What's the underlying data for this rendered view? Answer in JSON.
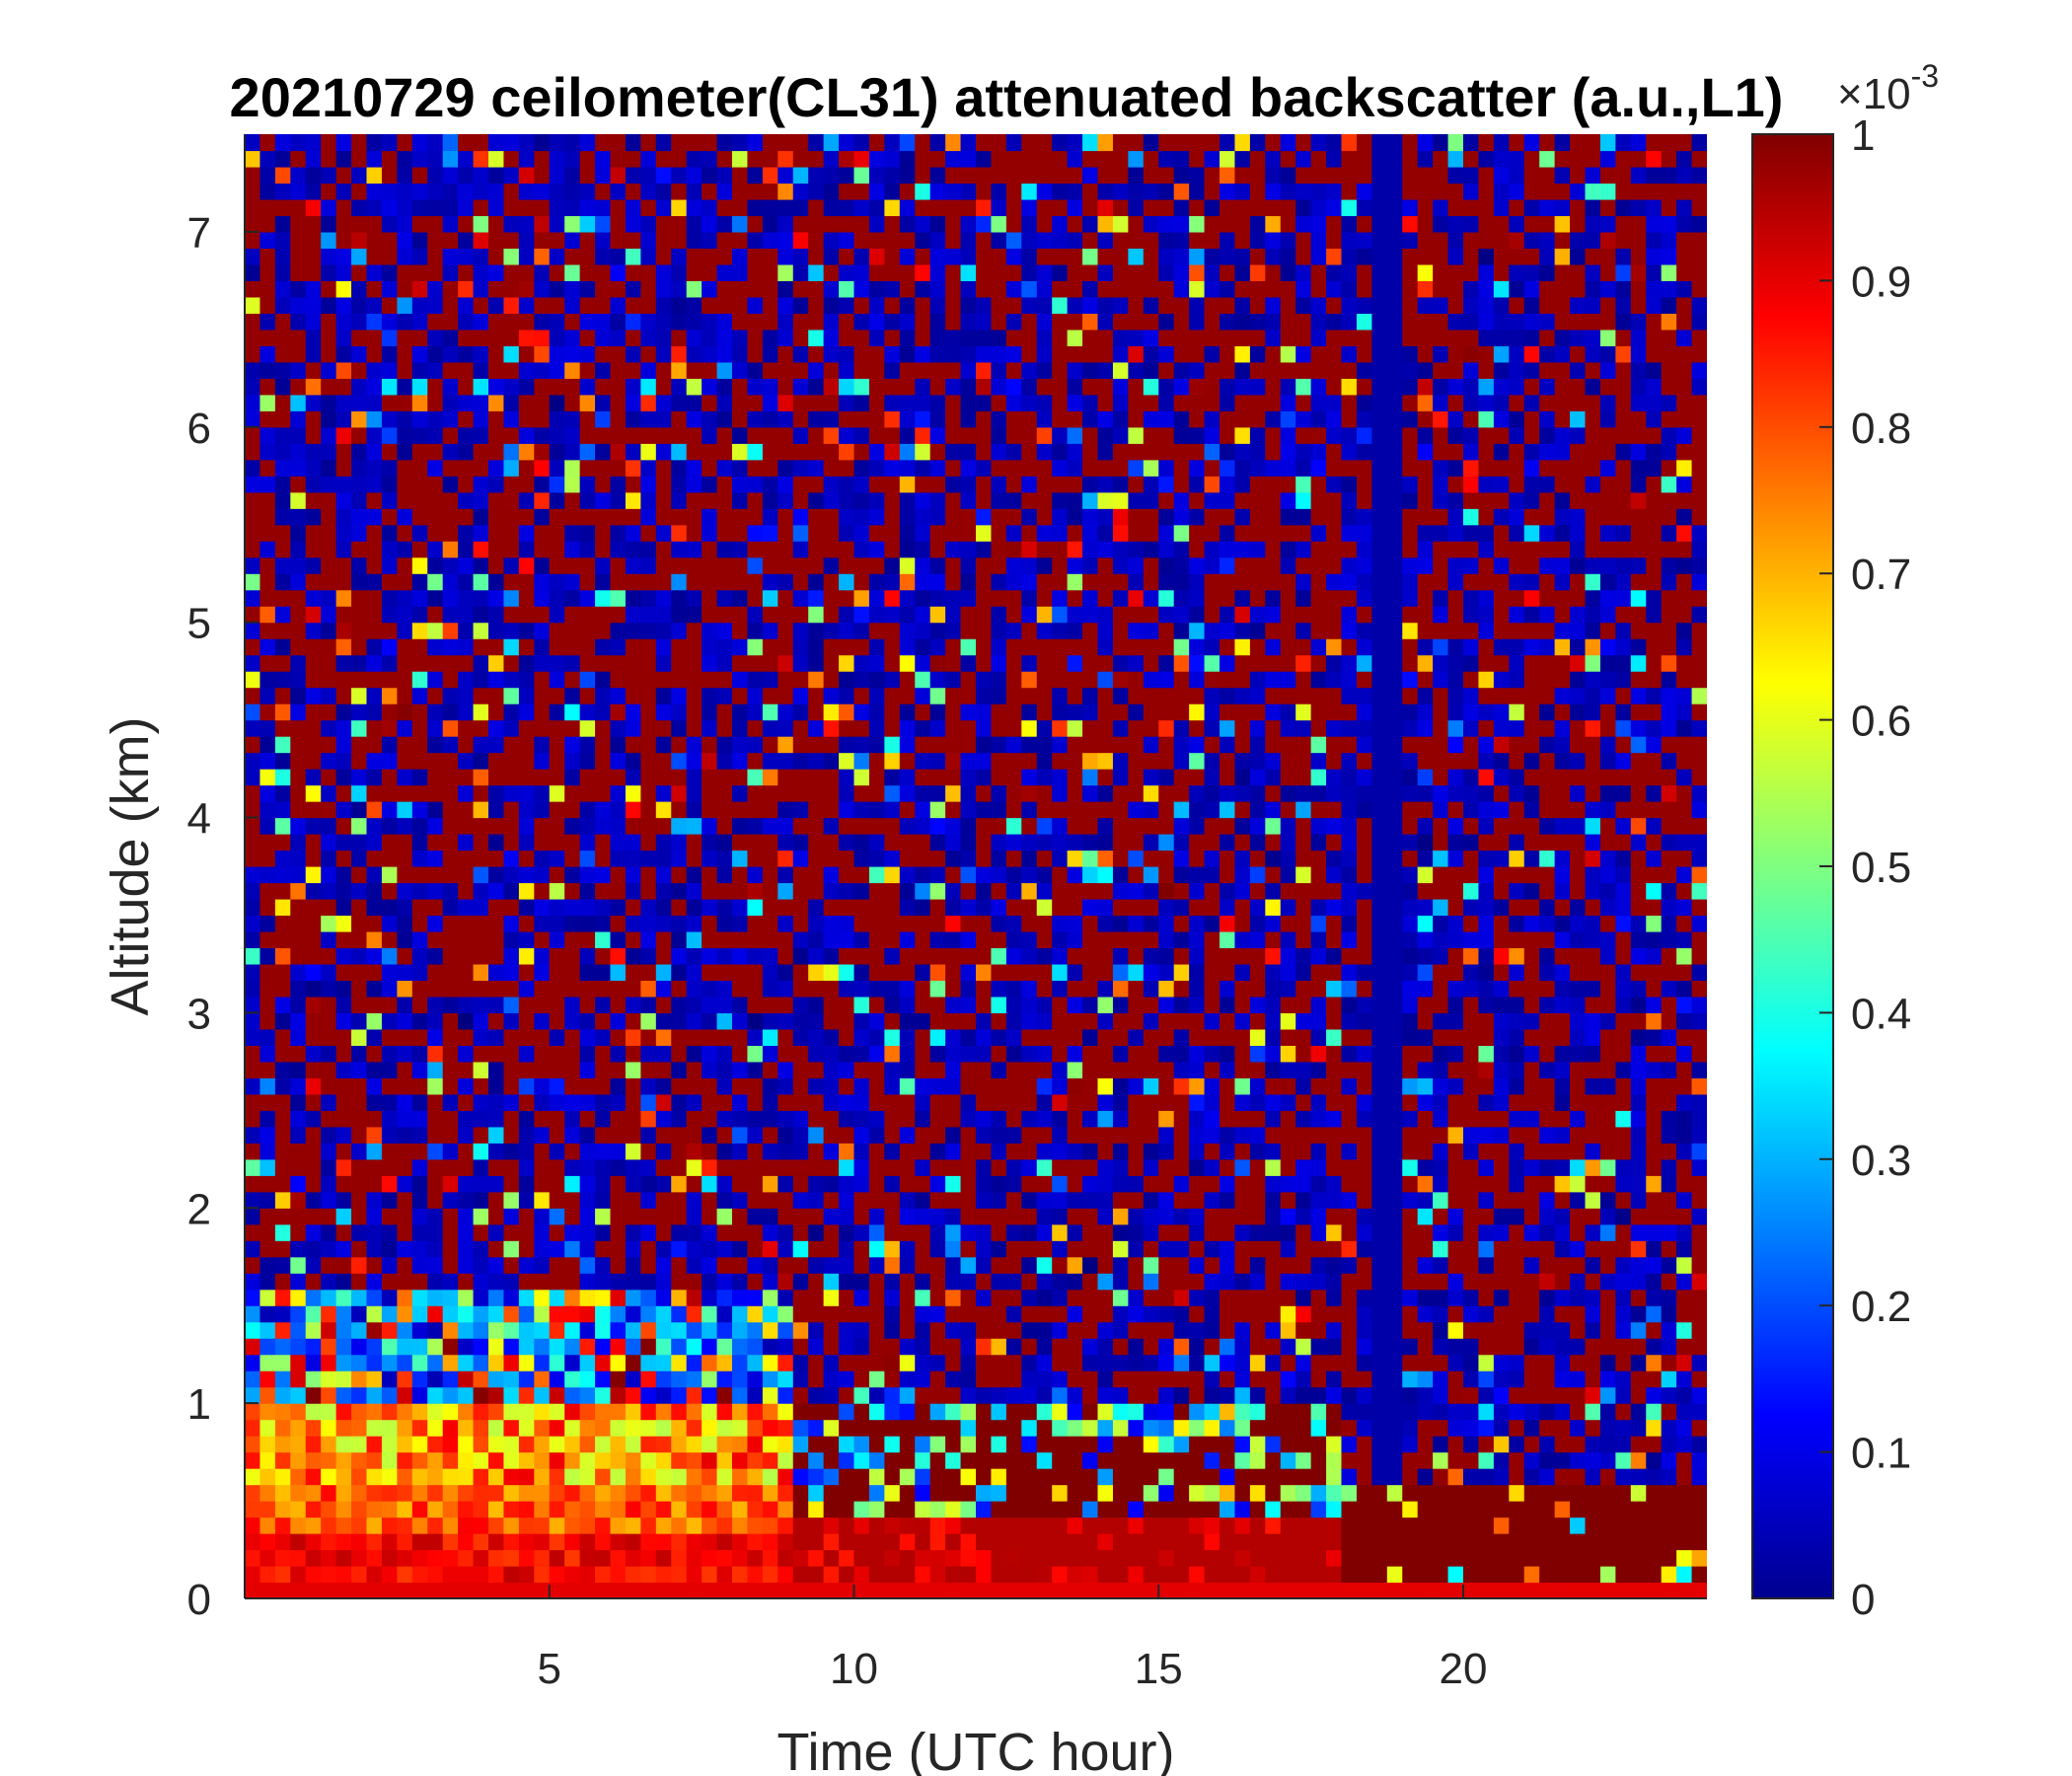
{
  "chart_data": {
    "type": "heatmap",
    "title": "20210729 ceilometer(CL31) attenuated backscatter (a.u.,L1)",
    "xlabel": "Time (UTC hour)",
    "ylabel": "Altitude (km)",
    "xlim": [
      0,
      24
    ],
    "ylim": [
      0,
      7.5
    ],
    "xticks": [
      5,
      10,
      15,
      20
    ],
    "yticks": [
      0,
      1,
      2,
      3,
      4,
      5,
      6,
      7
    ],
    "grid": false,
    "colormap": "jet",
    "colorbar": {
      "range": [
        0,
        1
      ],
      "exponent_base": "×10",
      "exponent_power": "-3",
      "ticks": [
        0,
        0.1,
        0.2,
        0.3,
        0.4,
        0.5,
        0.6,
        0.7,
        0.8,
        0.9,
        1
      ],
      "tick_labels": [
        "0",
        "0.1",
        "0.2",
        "0.3",
        "0.4",
        "0.5",
        "0.6",
        "0.7",
        "0.8",
        "0.9",
        "1"
      ]
    },
    "features": [
      {
        "kind": "boundary_layer",
        "time": [
          0,
          9
        ],
        "altitude": [
          0,
          1.0
        ],
        "level": 0.75
      },
      {
        "kind": "surface_layer",
        "time": [
          0,
          9
        ],
        "altitude": [
          0,
          0.4
        ],
        "level": 0.85
      },
      {
        "kind": "aerosol_layer",
        "time": [
          9,
          18
        ],
        "altitude": [
          0,
          0.6
        ],
        "level": 0.9
      },
      {
        "kind": "saturated_layer",
        "time": [
          18,
          24
        ],
        "altitude": [
          0,
          0.6
        ],
        "level": 1.0
      },
      {
        "kind": "noise_above",
        "time": [
          0,
          24
        ],
        "altitude": [
          1.5,
          7.5
        ],
        "level": 0.5
      }
    ]
  },
  "colors": {
    "background": "#ffffff",
    "text": "#262626",
    "jet_low": "#00008f",
    "jet_high": "#800000"
  }
}
